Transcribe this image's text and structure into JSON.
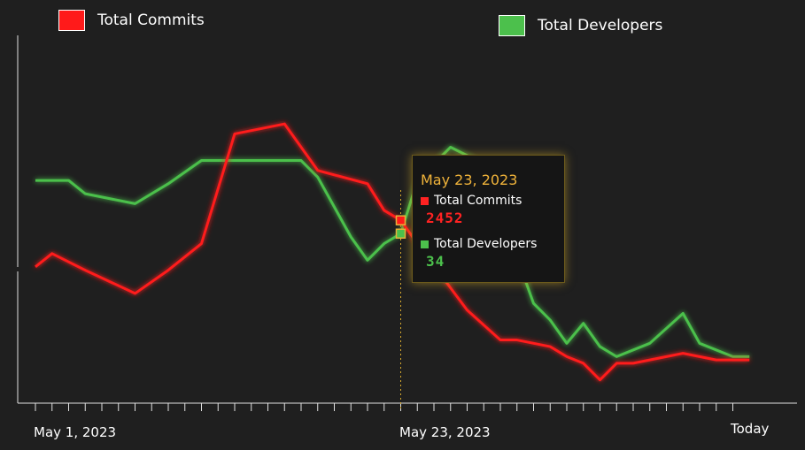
{
  "legend": [
    {
      "label": "Total Commits",
      "color": "#ff1a1a"
    },
    {
      "label": "Total Developers",
      "color": "#4cc04c"
    }
  ],
  "tooltip": {
    "date": "May 23, 2023",
    "rows": [
      {
        "label": "Total Commits",
        "value": "2452",
        "color": "#ff2222"
      },
      {
        "label": "Total Developers",
        "value": "34",
        "color": "#4cc04c"
      }
    ]
  },
  "chart_data": {
    "type": "line",
    "x_tick_labels": [
      {
        "index": 0,
        "label": "May 1, 2023"
      },
      {
        "index": 22,
        "label": "May 23, 2023"
      },
      {
        "index": 42,
        "label": "Today"
      }
    ],
    "x_count": 43,
    "hover_index": 22,
    "ylim": [
      0,
      100
    ],
    "series": [
      {
        "name": "Total Commits",
        "color": "#ff1a1a",
        "points": [
          [
            0,
            41
          ],
          [
            1,
            45
          ],
          [
            3,
            40
          ],
          [
            6,
            33
          ],
          [
            8,
            40
          ],
          [
            10,
            48
          ],
          [
            12,
            81
          ],
          [
            15,
            84
          ],
          [
            17,
            70
          ],
          [
            20,
            66
          ],
          [
            21,
            58
          ],
          [
            22,
            55
          ],
          [
            23,
            48
          ],
          [
            26,
            28
          ],
          [
            28,
            19
          ],
          [
            29,
            19
          ],
          [
            31,
            17
          ],
          [
            32,
            14
          ],
          [
            33,
            12
          ],
          [
            34,
            7
          ],
          [
            35,
            12
          ],
          [
            36,
            12
          ],
          [
            38,
            14
          ],
          [
            39,
            15
          ],
          [
            40,
            14
          ],
          [
            41,
            13
          ],
          [
            43,
            13
          ]
        ]
      },
      {
        "name": "Total Developers",
        "color": "#4cc04c",
        "points": [
          [
            0,
            67
          ],
          [
            1,
            67
          ],
          [
            2,
            67
          ],
          [
            3,
            63
          ],
          [
            6,
            60
          ],
          [
            8,
            66
          ],
          [
            10,
            73
          ],
          [
            12,
            73
          ],
          [
            15,
            73
          ],
          [
            16,
            73
          ],
          [
            17,
            68
          ],
          [
            18,
            59
          ],
          [
            19,
            50
          ],
          [
            20,
            43
          ],
          [
            21,
            48
          ],
          [
            22,
            51
          ],
          [
            23,
            67
          ],
          [
            25,
            77
          ],
          [
            27,
            72
          ],
          [
            28,
            53
          ],
          [
            29,
            44
          ],
          [
            30,
            30
          ],
          [
            31,
            25
          ],
          [
            32,
            18
          ],
          [
            33,
            24
          ],
          [
            34,
            17
          ],
          [
            35,
            14
          ],
          [
            37,
            18
          ],
          [
            39,
            27
          ],
          [
            40,
            18
          ],
          [
            42,
            14
          ],
          [
            43,
            14
          ]
        ]
      }
    ]
  }
}
